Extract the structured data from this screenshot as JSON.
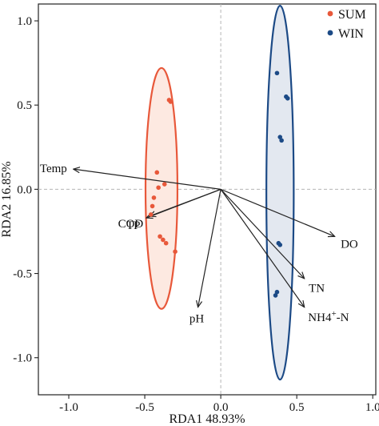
{
  "chart_data": {
    "type": "scatter",
    "title": "",
    "xlabel": "RDA1 48.93%",
    "ylabel": "RDA2 16.85%",
    "xlim": [
      -1.2,
      1.02
    ],
    "ylim": [
      -1.22,
      1.1
    ],
    "xticks": [
      -1.0,
      -0.5,
      0.0,
      0.5,
      1.0
    ],
    "xtick_labels": [
      "-1.0",
      "-0.5",
      "0.0",
      "0.5",
      "1.0"
    ],
    "yticks": [
      -1.0,
      -0.5,
      0.0,
      0.5,
      1.0
    ],
    "ytick_labels": [
      "-1.0",
      "-0.5",
      "0.0",
      "0.5",
      "1.0"
    ],
    "reference_lines": {
      "x": 0,
      "y": 0,
      "style": "dashed"
    },
    "legend": {
      "position": "top-right"
    },
    "series": [
      {
        "name": "SUM",
        "color": "#e8583a",
        "fill": "#fde9e1",
        "points": [
          [
            -0.34,
            0.53
          ],
          [
            -0.33,
            0.52
          ],
          [
            -0.42,
            0.1
          ],
          [
            -0.37,
            0.03
          ],
          [
            -0.41,
            0.01
          ],
          [
            -0.44,
            -0.05
          ],
          [
            -0.45,
            -0.1
          ],
          [
            -0.46,
            -0.15
          ],
          [
            -0.4,
            -0.28
          ],
          [
            -0.38,
            -0.3
          ],
          [
            -0.36,
            -0.32
          ],
          [
            -0.3,
            -0.37
          ]
        ],
        "ellipse": {
          "center": [
            -0.39,
            0.005
          ],
          "semi_x": 0.105,
          "semi_y": 0.715
        }
      },
      {
        "name": "WIN",
        "color": "#1c4a86",
        "fill": "#e3e8f0",
        "points": [
          [
            0.37,
            0.69
          ],
          [
            0.43,
            0.55
          ],
          [
            0.44,
            0.54
          ],
          [
            0.39,
            0.31
          ],
          [
            0.4,
            0.29
          ],
          [
            0.38,
            -0.32
          ],
          [
            0.39,
            -0.33
          ],
          [
            0.37,
            -0.61
          ],
          [
            0.36,
            -0.63
          ]
        ],
        "ellipse": {
          "center": [
            0.39,
            -0.02
          ],
          "semi_x": 0.09,
          "semi_y": 1.11
        }
      }
    ],
    "vectors": [
      {
        "label": "Temp",
        "x": -0.97,
        "y": 0.12
      },
      {
        "label": "COD",
        "x": -0.47,
        "y": -0.16
      },
      {
        "label": "TP",
        "x": -0.49,
        "y": -0.17
      },
      {
        "label": "pH",
        "x": -0.15,
        "y": -0.7
      },
      {
        "label": "DO",
        "x": 0.75,
        "y": -0.28
      },
      {
        "label": "TN",
        "x": 0.55,
        "y": -0.53
      },
      {
        "label": "NH4",
        "label_sup": "+",
        "label_suffix": "-N",
        "x": 0.55,
        "y": -0.7
      }
    ]
  }
}
